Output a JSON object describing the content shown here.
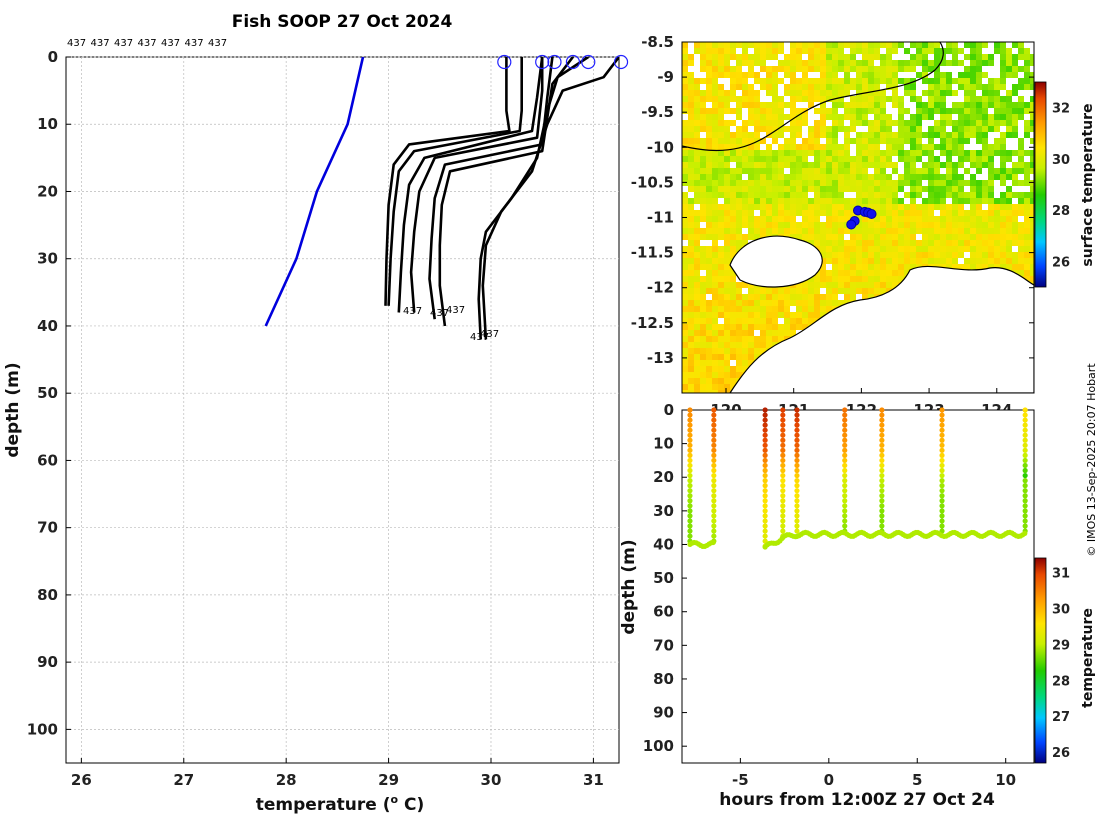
{
  "title": "Fish SOOP 27 Oct 2024",
  "credit": "© IMOS 13-Sep-2025 20:07 Hobart",
  "colors": {
    "profile": "#000000",
    "reference": "#0000dd",
    "surface_marker": "#2222ff"
  },
  "chart_data": [
    {
      "id": "profiles",
      "type": "line",
      "title": "Fish SOOP 27 Oct 2024",
      "xlabel": "temperature (",
      "xlabel_sup": "o",
      "xlabel_tail": " C)",
      "ylabel": "depth (m)",
      "xlim": [
        25.85,
        31.25
      ],
      "ylim": [
        0,
        105
      ],
      "xticks": [
        "26",
        "27",
        "28",
        "29",
        "30",
        "31"
      ],
      "yticks": [
        "0",
        "10",
        "20",
        "30",
        "40",
        "50",
        "60",
        "70",
        "80",
        "90",
        "100"
      ],
      "top_labels": [
        "437",
        "437",
        "437",
        "437",
        "437",
        "437",
        "437"
      ],
      "end_labels": [
        "437",
        "437",
        "437",
        "437",
        "437"
      ],
      "reference_profile": {
        "name": "climatology",
        "points": [
          [
            28.75,
            0
          ],
          [
            28.6,
            10
          ],
          [
            28.3,
            20
          ],
          [
            28.1,
            30
          ],
          [
            27.8,
            40
          ]
        ]
      },
      "series": [
        {
          "name": "p1",
          "points": [
            [
              30.15,
              0
            ],
            [
              30.15,
              8
            ],
            [
              30.18,
              11
            ],
            [
              29.2,
              13
            ],
            [
              29.05,
              16
            ],
            [
              29.0,
              22
            ],
            [
              28.98,
              30
            ],
            [
              28.97,
              37
            ]
          ]
        },
        {
          "name": "p2",
          "points": [
            [
              30.3,
              0
            ],
            [
              30.3,
              8
            ],
            [
              30.28,
              11
            ],
            [
              29.25,
              14
            ],
            [
              29.1,
              17
            ],
            [
              29.05,
              23
            ],
            [
              29.02,
              30
            ],
            [
              29.0,
              37
            ]
          ]
        },
        {
          "name": "p3",
          "points": [
            [
              30.5,
              0
            ],
            [
              30.45,
              6
            ],
            [
              30.4,
              11
            ],
            [
              29.35,
              15
            ],
            [
              29.2,
              19
            ],
            [
              29.15,
              25
            ],
            [
              29.12,
              32
            ],
            [
              29.1,
              38
            ]
          ]
        },
        {
          "name": "p4",
          "points": [
            [
              30.5,
              0
            ],
            [
              30.5,
              5
            ],
            [
              30.45,
              12
            ],
            [
              29.45,
              15
            ],
            [
              29.3,
              20
            ],
            [
              29.25,
              26
            ],
            [
              29.22,
              32
            ],
            [
              29.25,
              38
            ]
          ]
        },
        {
          "name": "p5",
          "points": [
            [
              30.6,
              0
            ],
            [
              30.55,
              6
            ],
            [
              30.5,
              13
            ],
            [
              29.55,
              16
            ],
            [
              29.45,
              21
            ],
            [
              29.42,
              27
            ],
            [
              29.4,
              33
            ],
            [
              29.45,
              39
            ]
          ]
        },
        {
          "name": "p6",
          "points": [
            [
              30.8,
              0
            ],
            [
              30.6,
              4
            ],
            [
              30.55,
              9
            ],
            [
              30.5,
              14
            ],
            [
              29.6,
              17
            ],
            [
              29.52,
              22
            ],
            [
              29.5,
              28
            ],
            [
              29.5,
              34
            ],
            [
              29.55,
              40
            ]
          ]
        },
        {
          "name": "p7",
          "points": [
            [
              30.95,
              0
            ],
            [
              30.65,
              3
            ],
            [
              30.55,
              8
            ],
            [
              30.45,
              15
            ],
            [
              30.2,
              21
            ],
            [
              29.95,
              26
            ],
            [
              29.9,
              30
            ],
            [
              29.88,
              36
            ],
            [
              29.9,
              42
            ]
          ]
        },
        {
          "name": "p8",
          "points": [
            [
              31.25,
              0
            ],
            [
              31.1,
              3
            ],
            [
              30.7,
              5
            ],
            [
              30.55,
              10
            ],
            [
              30.4,
              17
            ],
            [
              30.1,
              23
            ],
            [
              29.95,
              28
            ],
            [
              29.92,
              34
            ],
            [
              29.95,
              42
            ]
          ]
        }
      ],
      "surface_markers": [
        30.13,
        30.5,
        30.62,
        30.8,
        30.95,
        31.27
      ]
    },
    {
      "id": "map",
      "type": "heatmap",
      "xticks": [
        "120",
        "121",
        "122",
        "123",
        "124"
      ],
      "yticks": [
        "-8.5",
        "-9",
        "-9.5",
        "-10",
        "-10.5",
        "-11",
        "-11.5",
        "-12",
        "-12.5",
        "-13"
      ],
      "xlim": [
        119.35,
        124.55
      ],
      "ylim": [
        -13.5,
        -8.5
      ],
      "colorbar": {
        "label": "surface temperature",
        "ticks": [
          "26",
          "28",
          "30",
          "32"
        ],
        "range": [
          25.0,
          33.0
        ]
      },
      "track": [
        [
          121.95,
          -10.9
        ],
        [
          122.05,
          -10.92
        ],
        [
          122.1,
          -10.93
        ],
        [
          122.15,
          -10.95
        ],
        [
          121.9,
          -11.05
        ],
        [
          121.85,
          -11.1
        ]
      ]
    },
    {
      "id": "timeseries",
      "type": "scatter",
      "xlabel": "hours from 12:00Z 27 Oct 24",
      "ylabel": "depth (m)",
      "xlim": [
        -8.3,
        11.6
      ],
      "ylim": [
        0,
        105
      ],
      "xticks": [
        "-5",
        "0",
        "5",
        "10"
      ],
      "yticks": [
        "0",
        "10",
        "20",
        "30",
        "40",
        "50",
        "60",
        "70",
        "80",
        "90",
        "100"
      ],
      "colorbar": {
        "label": "temperature",
        "ticks": [
          "26",
          "27",
          "28",
          "29",
          "30",
          "31"
        ],
        "range": [
          25.7,
          31.4
        ]
      },
      "casts": [
        {
          "t": -7.85,
          "maxd": 40,
          "surface": 30.4
        },
        {
          "t": -6.5,
          "maxd": 40,
          "surface": 30.8
        },
        {
          "t": -3.6,
          "maxd": 41,
          "surface": 31.2
        },
        {
          "t": -2.6,
          "maxd": 38,
          "surface": 31.0
        },
        {
          "t": -1.8,
          "maxd": 37,
          "surface": 31.1
        },
        {
          "t": 0.9,
          "maxd": 37,
          "surface": 30.6
        },
        {
          "t": 3.0,
          "maxd": 37,
          "surface": 30.4
        },
        {
          "t": 6.4,
          "maxd": 37,
          "surface": 30.3
        },
        {
          "t": 11.1,
          "maxd": 37,
          "surface": 29.6
        }
      ]
    }
  ]
}
